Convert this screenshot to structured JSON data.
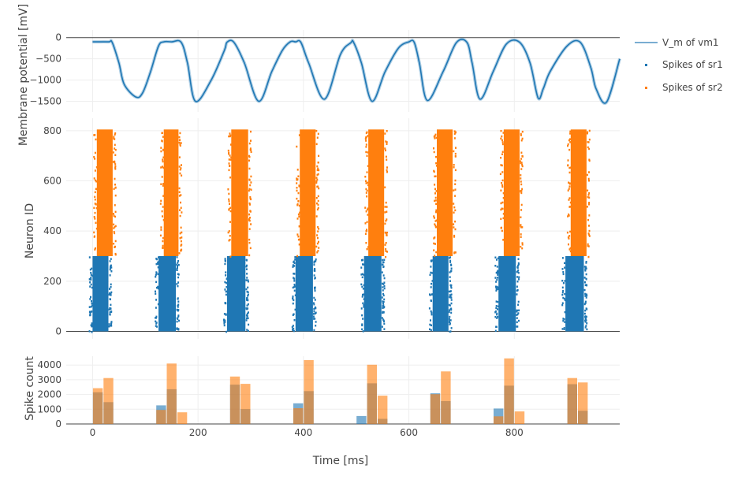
{
  "chart_data": [
    {
      "type": "line",
      "ylabel": "Membrane potential [mV]",
      "yticks": [
        0,
        -500,
        -1000,
        -1500
      ],
      "ylim": [
        -1750,
        180
      ],
      "xlim": [
        -50,
        1000
      ],
      "series": [
        {
          "name": "V_m of vm1",
          "color": "#1f77b4",
          "x": [
            0,
            30,
            37,
            50,
            60,
            82,
            95,
            110,
            125,
            135,
            150,
            168,
            180,
            195,
            225,
            250,
            255,
            268,
            288,
            315,
            340,
            360,
            375,
            385,
            395,
            410,
            440,
            470,
            490,
            495,
            510,
            530,
            555,
            580,
            600,
            610,
            620,
            635,
            665,
            690,
            710,
            720,
            735,
            760,
            785,
            810,
            830,
            845,
            855,
            868,
            900,
            925,
            945,
            955,
            975,
            1000
          ],
          "y": [
            -100,
            -100,
            -110,
            -600,
            -1100,
            -1400,
            -1300,
            -800,
            -200,
            -100,
            -100,
            -110,
            -600,
            -1500,
            -1000,
            -300,
            -110,
            -110,
            -600,
            -1500,
            -800,
            -300,
            -100,
            -100,
            -110,
            -600,
            -1450,
            -400,
            -120,
            -110,
            -600,
            -1500,
            -800,
            -250,
            -100,
            -110,
            -600,
            -1480,
            -800,
            -120,
            -110,
            -600,
            -1450,
            -800,
            -150,
            -110,
            -600,
            -1420,
            -1200,
            -800,
            -200,
            -110,
            -700,
            -1200,
            -1520,
            -500
          ]
        }
      ]
    },
    {
      "type": "scatter",
      "ylabel": "Neuron ID",
      "yticks": [
        0,
        200,
        400,
        600,
        800
      ],
      "ylim": [
        -30,
        850
      ],
      "xlim": [
        -50,
        1000
      ],
      "series": [
        {
          "name": "Spikes of sr1",
          "color": "#1f77b4",
          "id_range": [
            0,
            300
          ],
          "bursts": [
            [
              0,
              30
            ],
            [
              125,
              158
            ],
            [
              255,
              290
            ],
            [
              385,
              418
            ],
            [
              515,
              548
            ],
            [
              645,
              675
            ],
            [
              770,
              803
            ],
            [
              897,
              932
            ]
          ]
        },
        {
          "name": "Spikes of sr2",
          "color": "#ff7f0e",
          "id_range": [
            300,
            805
          ],
          "bursts": [
            [
              8,
              38
            ],
            [
              135,
              163
            ],
            [
              263,
              295
            ],
            [
              393,
              423
            ],
            [
              523,
              553
            ],
            [
              653,
              683
            ],
            [
              780,
              810
            ],
            [
              907,
              937
            ]
          ]
        }
      ]
    },
    {
      "type": "bar",
      "xlabel": "Time [ms]",
      "ylabel": "Spike count",
      "yticks": [
        0,
        1000,
        2000,
        3000,
        4000
      ],
      "xticks": [
        0,
        200,
        400,
        600,
        800
      ],
      "ylim": [
        0,
        4600
      ],
      "xlim": [
        -50,
        1000
      ],
      "bin_width": 20,
      "bin_starts": [
        0,
        20,
        40,
        60,
        80,
        100,
        120,
        140,
        160,
        180,
        200,
        220,
        240,
        260,
        280,
        300,
        320,
        340,
        360,
        380,
        400,
        420,
        440,
        460,
        480,
        500,
        520,
        540,
        560,
        580,
        600,
        620,
        640,
        660,
        680,
        700,
        720,
        740,
        760,
        780,
        800,
        820,
        840,
        860,
        880,
        900,
        920,
        940
      ],
      "series": [
        {
          "name": "Spikes of sr1",
          "color": "#1f77b4",
          "values": [
            2150,
            1480,
            0,
            0,
            0,
            0,
            1260,
            2360,
            0,
            0,
            0,
            0,
            0,
            2670,
            1010,
            0,
            0,
            0,
            0,
            1400,
            2230,
            0,
            0,
            0,
            0,
            540,
            2760,
            350,
            0,
            0,
            0,
            0,
            2080,
            1550,
            0,
            0,
            0,
            0,
            1050,
            2600,
            0,
            0,
            0,
            0,
            0,
            2700,
            900,
            0
          ]
        },
        {
          "name": "Spikes of sr2",
          "color": "#ff7f0e",
          "values": [
            2430,
            3120,
            0,
            0,
            0,
            0,
            950,
            4100,
            790,
            0,
            0,
            0,
            0,
            3220,
            2720,
            0,
            0,
            0,
            0,
            1070,
            4330,
            0,
            0,
            0,
            0,
            0,
            4020,
            1920,
            0,
            0,
            0,
            0,
            2020,
            3570,
            0,
            0,
            0,
            0,
            520,
            4450,
            850,
            0,
            0,
            0,
            0,
            3120,
            2820,
            0
          ]
        }
      ]
    }
  ]
}
